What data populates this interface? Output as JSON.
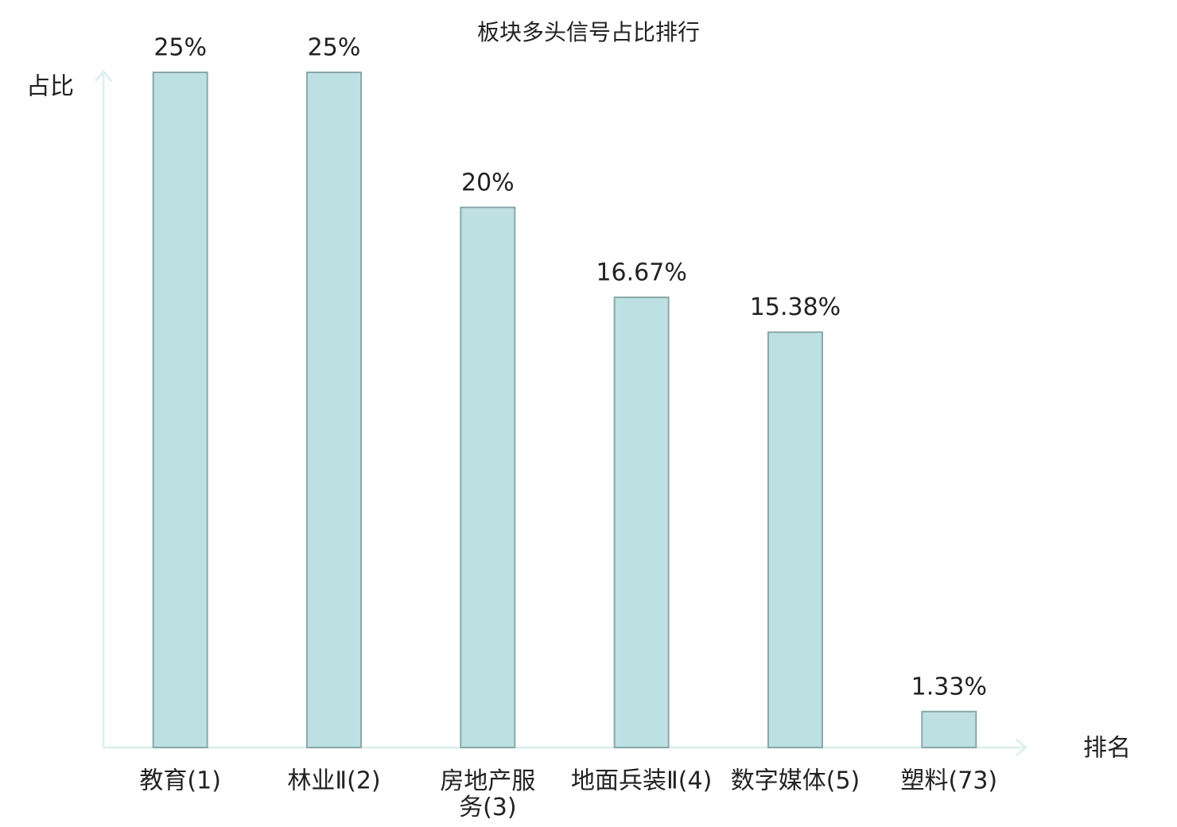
{
  "chart_data": {
    "type": "bar",
    "title": "板块多头信号占比排行",
    "y_label": "占比",
    "x_label": "排名",
    "categories": [
      "教育(1)",
      "林业Ⅱ(2)",
      "房地产服务(3)",
      "地面兵装Ⅱ(4)",
      "数字媒体(5)",
      "塑料(73)"
    ],
    "category_colors": [
      "#333333",
      "#333333",
      "#333333",
      "#333333",
      "#333333",
      "#e00000"
    ],
    "values": [
      25,
      25,
      20,
      16.67,
      15.38,
      1.33
    ],
    "value_labels": [
      "25%",
      "25%",
      "20%",
      "16.67%",
      "15.38%",
      "1.33%"
    ],
    "color": "#bde0e3",
    "edge_color": "#8aa8aa",
    "axis_color": "#dff0ee",
    "ylim": [
      0,
      25
    ]
  }
}
